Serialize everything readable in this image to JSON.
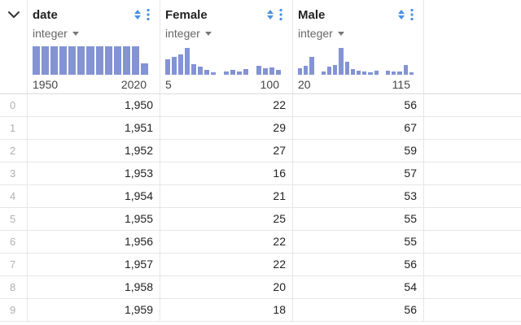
{
  "colors": {
    "accent": "#4a90e2",
    "bar": "#8393d4",
    "grid": "#e6e6e6"
  },
  "columns": [
    {
      "name": "date",
      "dtype": "integer",
      "range_min": "1950",
      "range_max": "2020",
      "histogram": [
        1,
        1,
        1,
        1,
        1,
        1,
        1,
        1,
        1,
        1,
        1,
        1,
        0.4
      ]
    },
    {
      "name": "Female",
      "dtype": "integer",
      "range_min": "5",
      "range_max": "100",
      "histogram": [
        0.55,
        0.62,
        0.72,
        0.95,
        0.38,
        0.28,
        0.18,
        0.08,
        0,
        0.12,
        0.18,
        0.12,
        0.2,
        0,
        0.32,
        0.22,
        0.25,
        0.18
      ]
    },
    {
      "name": "Male",
      "dtype": "integer",
      "range_min": "20",
      "range_max": "115",
      "histogram": [
        0.22,
        0.32,
        0.62,
        0,
        0.12,
        0.28,
        0.35,
        0.95,
        0.45,
        0.2,
        0.15,
        0.12,
        0.08,
        0.15,
        0,
        0.15,
        0.12,
        0.1,
        0.35,
        0.08
      ]
    }
  ],
  "rows": [
    {
      "index": "0",
      "date": "1,950",
      "female": "22",
      "male": "56"
    },
    {
      "index": "1",
      "date": "1,951",
      "female": "29",
      "male": "67"
    },
    {
      "index": "2",
      "date": "1,952",
      "female": "27",
      "male": "59"
    },
    {
      "index": "3",
      "date": "1,953",
      "female": "16",
      "male": "57"
    },
    {
      "index": "4",
      "date": "1,954",
      "female": "21",
      "male": "53"
    },
    {
      "index": "5",
      "date": "1,955",
      "female": "25",
      "male": "55"
    },
    {
      "index": "6",
      "date": "1,956",
      "female": "22",
      "male": "55"
    },
    {
      "index": "7",
      "date": "1,957",
      "female": "22",
      "male": "56"
    },
    {
      "index": "8",
      "date": "1,958",
      "female": "20",
      "male": "54"
    },
    {
      "index": "9",
      "date": "1,959",
      "female": "18",
      "male": "56"
    }
  ]
}
